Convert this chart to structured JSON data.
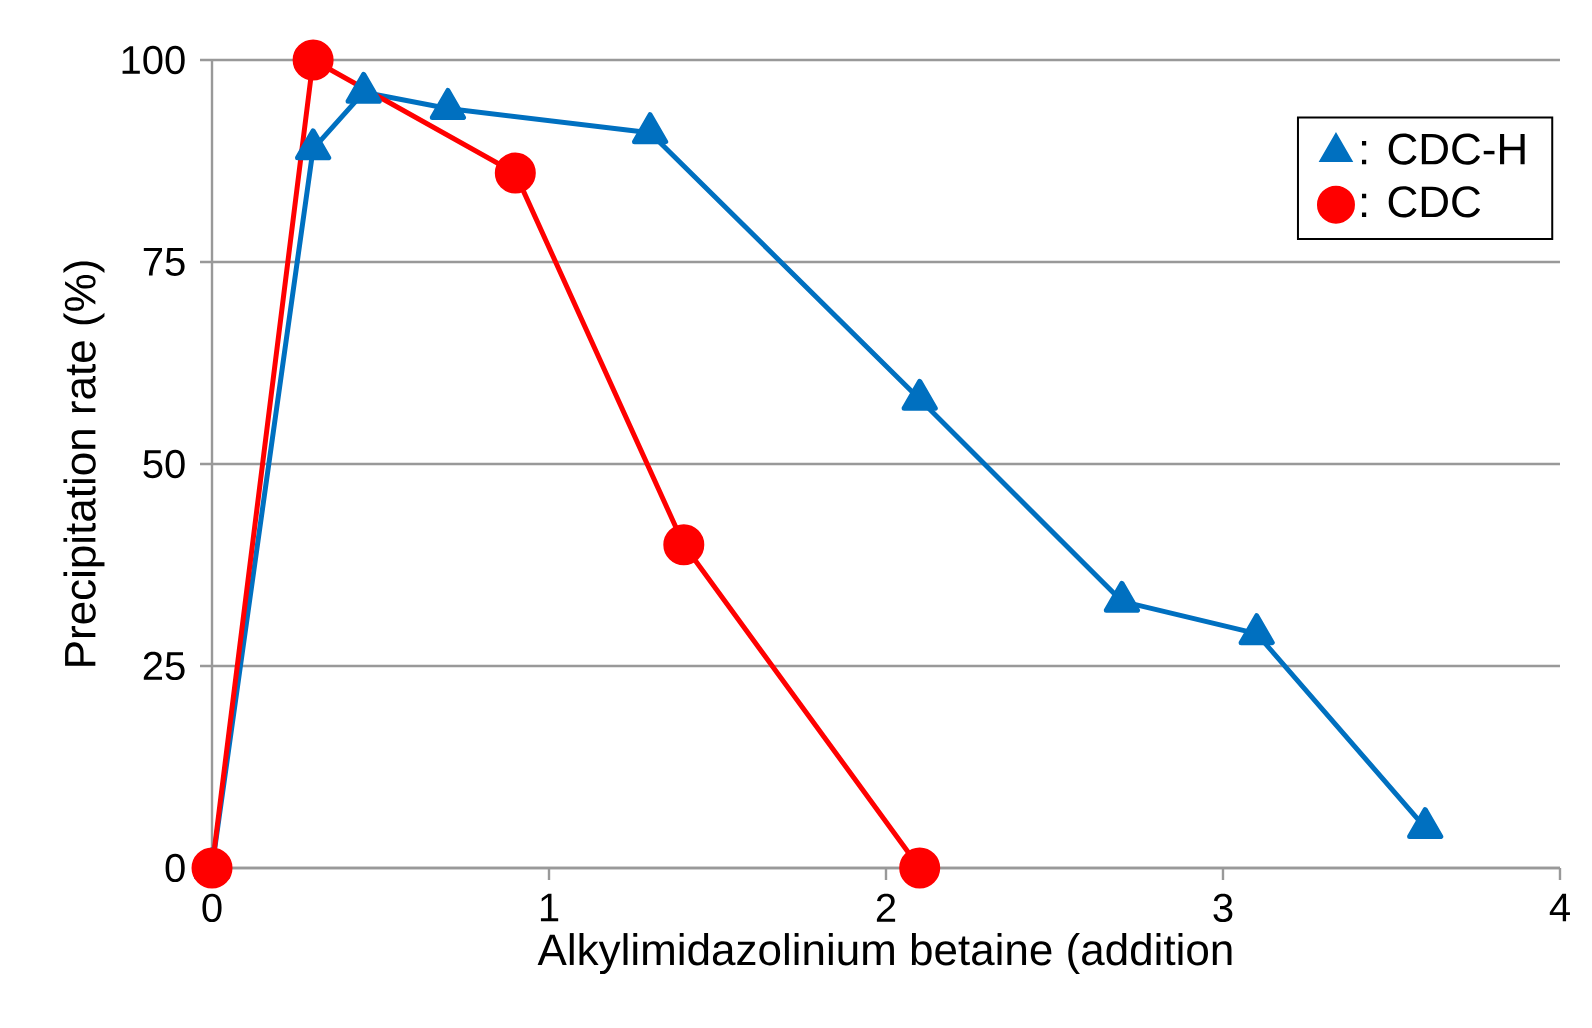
{
  "chart_data": {
    "type": "line",
    "xlabel": "Alkylimidazolinium betaine (addition",
    "ylabel": "Precipitation rate (%)",
    "xlim": [
      0,
      4
    ],
    "xticks": [
      0,
      1,
      2,
      3,
      4
    ],
    "ylim": [
      0,
      100
    ],
    "yticks": [
      0,
      25,
      50,
      75,
      100
    ],
    "grid": "y",
    "legend": "top right",
    "line_style": "solid",
    "series": [
      {
        "name": ": CDC-H",
        "color": "#0070c0",
        "marker": "triangle",
        "x": [
          0,
          0.3,
          0.45,
          0.7,
          1.3,
          2.1,
          2.7,
          3.1,
          3.6
        ],
        "values": [
          0,
          89,
          96,
          94,
          91,
          58,
          33,
          29,
          5
        ]
      },
      {
        "name": ": CDC",
        "color": "#ff0000",
        "marker": "circle",
        "x": [
          0,
          0.3,
          0.9,
          1.4,
          2.1
        ],
        "values": [
          0,
          100,
          86,
          40,
          0
        ]
      }
    ]
  }
}
